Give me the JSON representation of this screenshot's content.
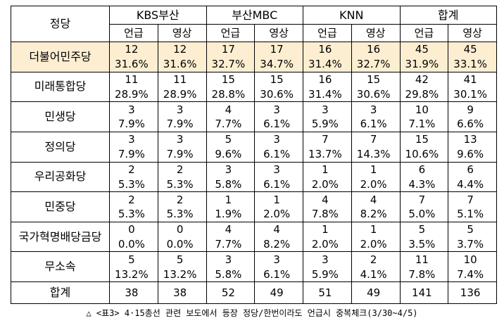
{
  "table": {
    "corner_label": "정당",
    "broadcasters": [
      "KBS부산",
      "부산MBC",
      "KNN",
      "합계"
    ],
    "sub_headers": [
      "언급",
      "영상"
    ],
    "parties": [
      {
        "name": "더불어민주당",
        "highlight": true,
        "counts": [
          "12",
          "12",
          "17",
          "17",
          "16",
          "16",
          "45",
          "45"
        ],
        "pcts": [
          "31.6%",
          "31.6%",
          "32.7%",
          "34.7%",
          "31.4%",
          "32.7%",
          "31.9%",
          "33.1%"
        ]
      },
      {
        "name": "미래통합당",
        "highlight": false,
        "counts": [
          "11",
          "11",
          "15",
          "15",
          "16",
          "15",
          "42",
          "41"
        ],
        "pcts": [
          "28.9%",
          "28.9%",
          "28.8%",
          "30.6%",
          "31.4%",
          "30.6%",
          "29.8%",
          "30.1%"
        ]
      },
      {
        "name": "민생당",
        "highlight": false,
        "counts": [
          "3",
          "3",
          "4",
          "3",
          "3",
          "3",
          "10",
          "9"
        ],
        "pcts": [
          "7.9%",
          "7.9%",
          "7.7%",
          "6.1%",
          "5.9%",
          "6.1%",
          "7.1%",
          "6.6%"
        ]
      },
      {
        "name": "정의당",
        "highlight": false,
        "counts": [
          "3",
          "3",
          "5",
          "3",
          "7",
          "7",
          "15",
          "13"
        ],
        "pcts": [
          "7.9%",
          "7.9%",
          "9.6%",
          "6.1%",
          "13.7%",
          "14.3%",
          "10.6%",
          "9.6%"
        ]
      },
      {
        "name": "우리공화당",
        "highlight": false,
        "counts": [
          "2",
          "2",
          "3",
          "3",
          "1",
          "1",
          "6",
          "6"
        ],
        "pcts": [
          "5.3%",
          "5.3%",
          "5.8%",
          "6.1%",
          "2.0%",
          "2.0%",
          "4.3%",
          "4.4%"
        ]
      },
      {
        "name": "민중당",
        "highlight": false,
        "counts": [
          "2",
          "2",
          "1",
          "1",
          "4",
          "4",
          "7",
          "7"
        ],
        "pcts": [
          "5.3%",
          "5.3%",
          "1.9%",
          "2.0%",
          "7.8%",
          "8.2%",
          "5.0%",
          "5.1%"
        ]
      },
      {
        "name": "국가혁명배당금당",
        "highlight": false,
        "counts": [
          "0",
          "0",
          "4",
          "4",
          "1",
          "1",
          "5",
          "5"
        ],
        "pcts": [
          "0.0%",
          "0.0%",
          "7.7%",
          "8.2%",
          "2.0%",
          "2.0%",
          "3.5%",
          "3.7%"
        ]
      },
      {
        "name": "무소속",
        "highlight": false,
        "counts": [
          "5",
          "5",
          "3",
          "3",
          "3",
          "2",
          "11",
          "10"
        ],
        "pcts": [
          "13.2%",
          "13.2%",
          "5.8%",
          "6.1%",
          "5.9%",
          "4.1%",
          "7.8%",
          "7.4%"
        ]
      }
    ],
    "total": {
      "name": "합계",
      "values": [
        "38",
        "38",
        "52",
        "49",
        "51",
        "49",
        "141",
        "136"
      ]
    },
    "highlight_color": "#fdeed2"
  },
  "caption": "△ <표3> 4·15총선 관련 보도에서 등장 정당/한번이라도 언급시 중복체크(3/30~4/5)"
}
